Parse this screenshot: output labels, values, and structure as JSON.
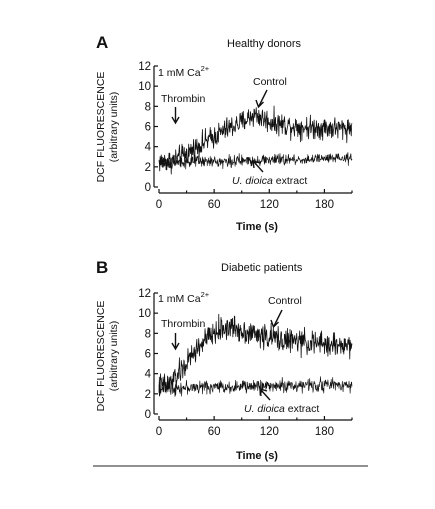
{
  "chart_data": [
    {
      "type": "line",
      "panel_label": "A",
      "title": "Healthy donors",
      "xlabel": "Time (s)",
      "ylabel": "DCF FLUORESCENCE",
      "ylabel_units": "(arbitrary units)",
      "xlim": [
        0,
        210
      ],
      "ylim": [
        0,
        12
      ],
      "xticks": [
        0,
        60,
        120,
        180
      ],
      "yticks": [
        0,
        2,
        4,
        6,
        8,
        10,
        12
      ],
      "condition_label": "1 mM Ca",
      "condition_sup": "2+",
      "stimulus_label": "Thrombin",
      "stimulus_time": 15,
      "series": [
        {
          "name": "Control",
          "x": [
            0,
            15,
            20,
            30,
            45,
            60,
            75,
            90,
            100,
            105,
            110,
            120,
            135,
            150,
            165,
            180,
            195,
            210
          ],
          "y": [
            2.5,
            2.6,
            2.8,
            3.3,
            4.2,
            5.0,
            5.8,
            6.4,
            7.0,
            7.2,
            6.9,
            6.5,
            6.2,
            6.0,
            5.9,
            5.9,
            5.8,
            5.9
          ],
          "noise": 0.7
        },
        {
          "name": "U. dioica extract",
          "x": [
            0,
            30,
            60,
            90,
            120,
            150,
            180,
            210
          ],
          "y": [
            2.4,
            2.5,
            2.5,
            2.6,
            2.7,
            2.7,
            2.8,
            2.8
          ],
          "noise": 0.35
        }
      ],
      "legend_labels": {
        "control": "Control",
        "extract_italic": "U. dioica",
        "extract_plain": " extract"
      }
    },
    {
      "type": "line",
      "panel_label": "B",
      "title": "Diabetic patients",
      "xlabel": "Time (s)",
      "ylabel": "DCF FLUORESCENCE",
      "ylabel_units": "(arbitrary units)",
      "xlim": [
        0,
        210
      ],
      "ylim": [
        0,
        12
      ],
      "xticks": [
        0,
        60,
        120,
        180
      ],
      "yticks": [
        0,
        2,
        4,
        6,
        8,
        10,
        12
      ],
      "condition_label": "1 mM Ca",
      "condition_sup": "2+",
      "stimulus_label": "Thrombin",
      "stimulus_time": 15,
      "series": [
        {
          "name": "Control",
          "x": [
            0,
            10,
            20,
            30,
            40,
            50,
            60,
            70,
            80,
            90,
            100,
            120,
            140,
            160,
            180,
            200,
            210
          ],
          "y": [
            2.8,
            2.9,
            3.8,
            5.0,
            6.3,
            7.3,
            8.0,
            8.5,
            8.6,
            8.3,
            8.0,
            7.6,
            7.3,
            7.1,
            6.9,
            6.8,
            6.8
          ],
          "noise": 0.75
        },
        {
          "name": "U. dioica extract",
          "x": [
            0,
            30,
            60,
            90,
            120,
            150,
            180,
            210
          ],
          "y": [
            2.6,
            2.6,
            2.7,
            2.7,
            2.8,
            2.8,
            2.9,
            2.9
          ],
          "noise": 0.4
        }
      ],
      "legend_labels": {
        "control": "Control",
        "extract_italic": "U. dioica",
        "extract_plain": " extract"
      }
    }
  ]
}
